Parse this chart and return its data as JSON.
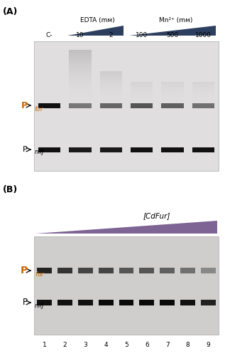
{
  "panel_A_label": "(A)",
  "panel_B_label": "(B)",
  "background_color": "#ffffff",
  "gel_bg_A": "#e0dede",
  "gel_bg_B": "#d0cdcd",
  "orange_color": "#cc6600",
  "arrow_color": "#111111",
  "edta_label": "EDTA (mм)",
  "mn_label": "Mn²⁺ (mм)",
  "cdfur_label": "[CdFur]",
  "lane_labels_A": [
    "C-",
    "10",
    "2",
    "100",
    "500",
    "1000"
  ],
  "lane_labels_B": [
    "1",
    "2",
    "3",
    "4",
    "5",
    "6",
    "7",
    "8",
    "9"
  ],
  "blue_dark": "#2d3f5e",
  "blue_light": "#8899bb",
  "purple_dark": "#5c3d7a",
  "purple_light": "#b09acc",
  "pfur_colors_A": [
    "#111111",
    "#888888",
    "#666666",
    "#555555",
    "#606060",
    "#707070"
  ],
  "pnifj_colors_A": [
    "#111111",
    "#1a1a1a",
    "#1a1a1a",
    "#111111",
    "#111111",
    "#111111"
  ],
  "pfur_colors_B": [
    "#222222",
    "#333333",
    "#444444",
    "#444444",
    "#555555",
    "#555555",
    "#606060",
    "#707070",
    "#888888"
  ],
  "pnifj_colors_B": [
    "#111111",
    "#111111",
    "#111111",
    "#0a0a0a",
    "#0a0a0a",
    "#0a0a0a",
    "#0a0a0a",
    "#111111",
    "#222222"
  ]
}
